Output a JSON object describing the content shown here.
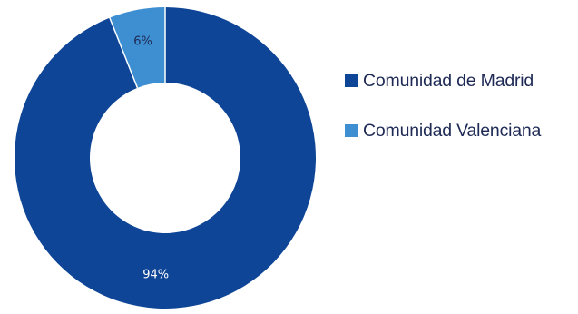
{
  "chart_data": {
    "type": "pie",
    "style": "donut",
    "categories": [
      "Comunidad de Madrid",
      "Comunidad Valenciana"
    ],
    "values": [
      94,
      6
    ],
    "data_labels": [
      "94%",
      "6%"
    ],
    "colors": [
      "#0f4596",
      "#3e8fd2"
    ],
    "label_colors": [
      "#ffffff",
      "#1e2a55"
    ],
    "legend_position": "right",
    "legend": [
      {
        "label": "Comunidad de Madrid",
        "color": "#0f4596"
      },
      {
        "label": "Comunidad Valenciana",
        "color": "#3e8fd2"
      }
    ]
  }
}
